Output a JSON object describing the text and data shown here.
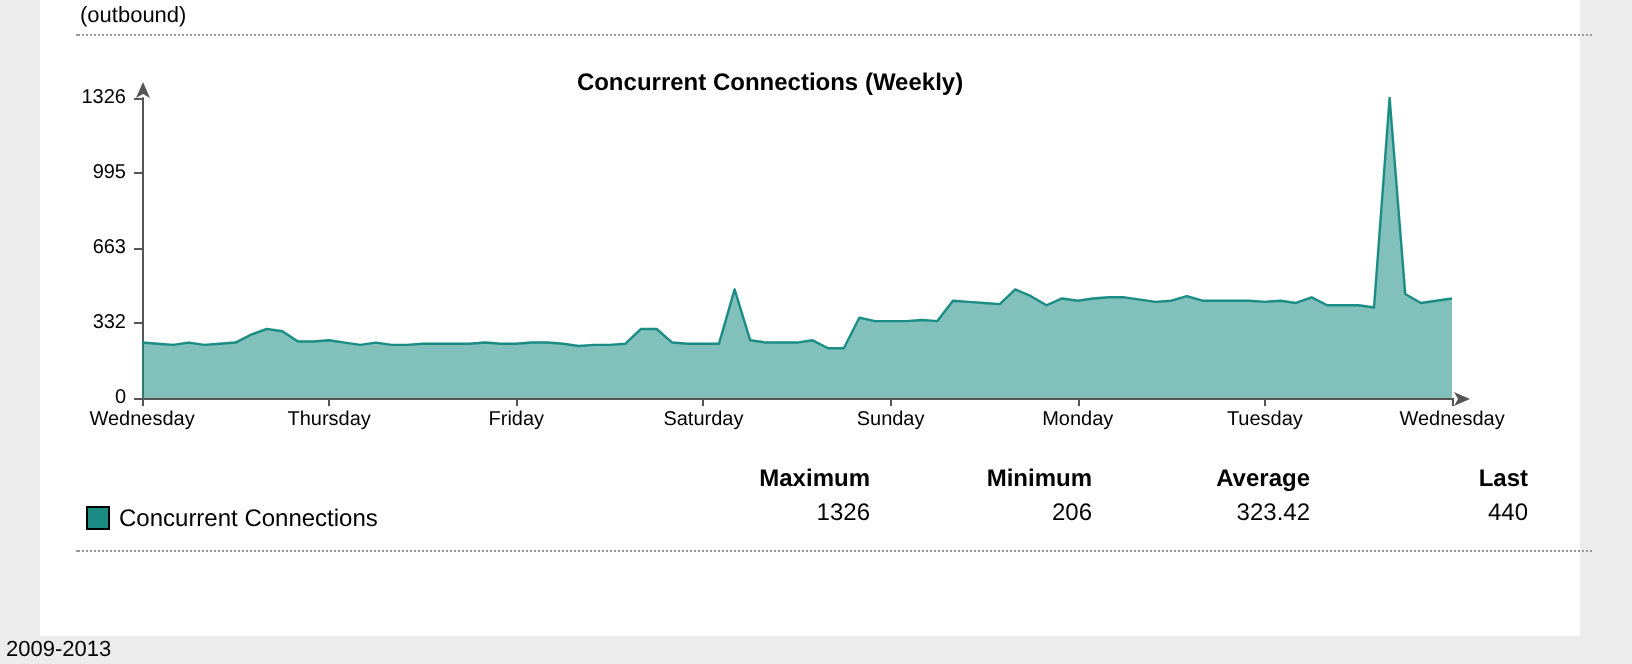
{
  "chart_data": {
    "type": "area",
    "title": "Concurrent Connections (Weekly)",
    "categories": [
      "Wednesday",
      null,
      null,
      null,
      null,
      null,
      null,
      null,
      null,
      null,
      null,
      null,
      "Thursday",
      null,
      null,
      null,
      null,
      null,
      null,
      null,
      null,
      null,
      null,
      null,
      "Friday",
      null,
      null,
      null,
      null,
      null,
      null,
      null,
      null,
      null,
      null,
      null,
      "Saturday",
      null,
      null,
      null,
      null,
      null,
      null,
      null,
      null,
      null,
      null,
      null,
      "Sunday",
      null,
      null,
      null,
      null,
      null,
      null,
      null,
      null,
      null,
      null,
      null,
      "Monday",
      null,
      null,
      null,
      null,
      null,
      null,
      null,
      null,
      null,
      null,
      null,
      "Tuesday",
      null,
      null,
      null,
      null,
      null,
      null,
      null,
      null,
      null,
      null,
      null,
      "Wednesday"
    ],
    "series": [
      {
        "name": "Concurrent Connections",
        "color": "#1a8c84",
        "values": [
          245,
          240,
          235,
          245,
          235,
          240,
          245,
          280,
          305,
          295,
          250,
          250,
          255,
          245,
          235,
          245,
          235,
          235,
          240,
          240,
          240,
          240,
          245,
          240,
          240,
          245,
          245,
          240,
          230,
          235,
          235,
          240,
          305,
          305,
          245,
          240,
          240,
          240,
          480,
          255,
          245,
          245,
          245,
          255,
          220,
          220,
          355,
          340,
          340,
          340,
          345,
          340,
          430,
          425,
          420,
          415,
          480,
          450,
          410,
          440,
          430,
          440,
          445,
          445,
          435,
          425,
          430,
          450,
          430,
          430,
          430,
          430,
          425,
          430,
          420,
          445,
          410,
          410,
          410,
          400,
          1326,
          460,
          420,
          430,
          440
        ]
      }
    ],
    "ylim": [
      0,
      1326
    ],
    "yticks": [
      0,
      332,
      663,
      995,
      1326
    ],
    "grid": false,
    "legend": "bottom left",
    "marker": "none",
    "line_style": "solid",
    "annotations": [
      "(outbound)",
      "Maximum",
      "Minimum",
      "Average",
      "Last",
      "1326",
      "206",
      "323.42",
      "440",
      "2009-2013"
    ]
  }
}
